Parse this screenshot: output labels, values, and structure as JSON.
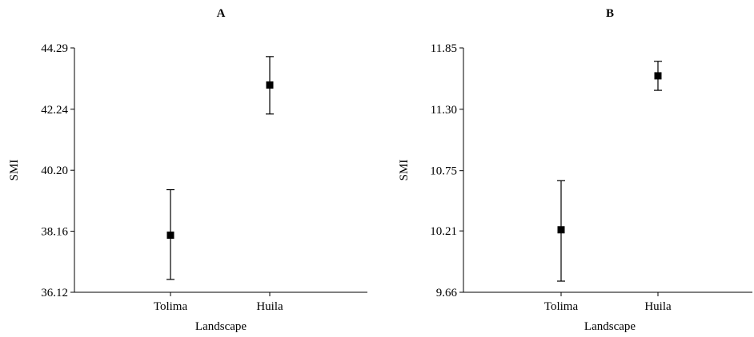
{
  "chart_data": [
    {
      "type": "scatter",
      "title": "A",
      "xlabel": "Landscape",
      "ylabel": "SMI",
      "categories": [
        "Tolima",
        "Huila"
      ],
      "yticks": [
        "36.12",
        "38.16",
        "40.20",
        "42.24",
        "44.29"
      ],
      "ylim": [
        36.12,
        44.29
      ],
      "series": [
        {
          "values": [
            38.03,
            43.05
          ],
          "lower": [
            36.55,
            42.08
          ],
          "upper": [
            39.55,
            44.0
          ]
        }
      ],
      "grid": false
    },
    {
      "type": "scatter",
      "title": "B",
      "xlabel": "Landscape",
      "ylabel": "SMI",
      "categories": [
        "Tolima",
        "Huila"
      ],
      "yticks": [
        "9.66",
        "10.21",
        "10.75",
        "11.30",
        "11.85"
      ],
      "ylim": [
        9.66,
        11.85
      ],
      "series": [
        {
          "values": [
            10.22,
            11.6
          ],
          "lower": [
            9.76,
            11.47
          ],
          "upper": [
            10.66,
            11.73
          ]
        }
      ],
      "grid": false
    }
  ]
}
